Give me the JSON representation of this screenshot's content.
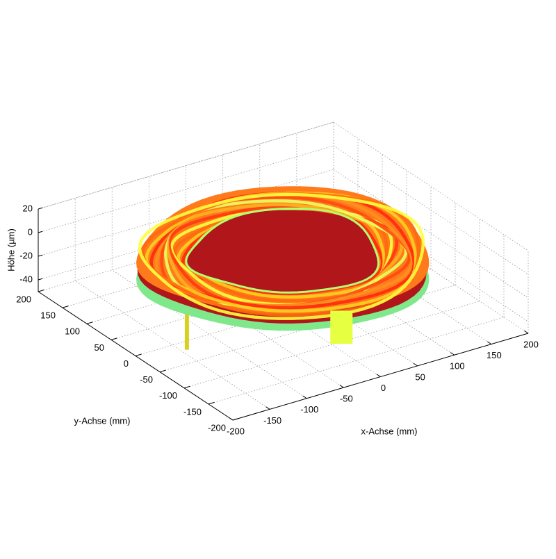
{
  "chart_data": {
    "type": "surface",
    "xlabel": "x-Achse (mm)",
    "ylabel": "y-Achse (mm)",
    "zlabel": "Höhe (µm)",
    "xlim": [
      -200,
      200
    ],
    "ylim": [
      -200,
      200
    ],
    "zlim": [
      -50,
      20
    ],
    "xticks": [
      -200,
      -150,
      -100,
      -50,
      0,
      50,
      100,
      150,
      200
    ],
    "yticks": [
      -200,
      -150,
      -100,
      -50,
      0,
      50,
      100,
      150,
      200
    ],
    "zticks": [
      -40,
      -20,
      0,
      20
    ],
    "grid": true
  }
}
